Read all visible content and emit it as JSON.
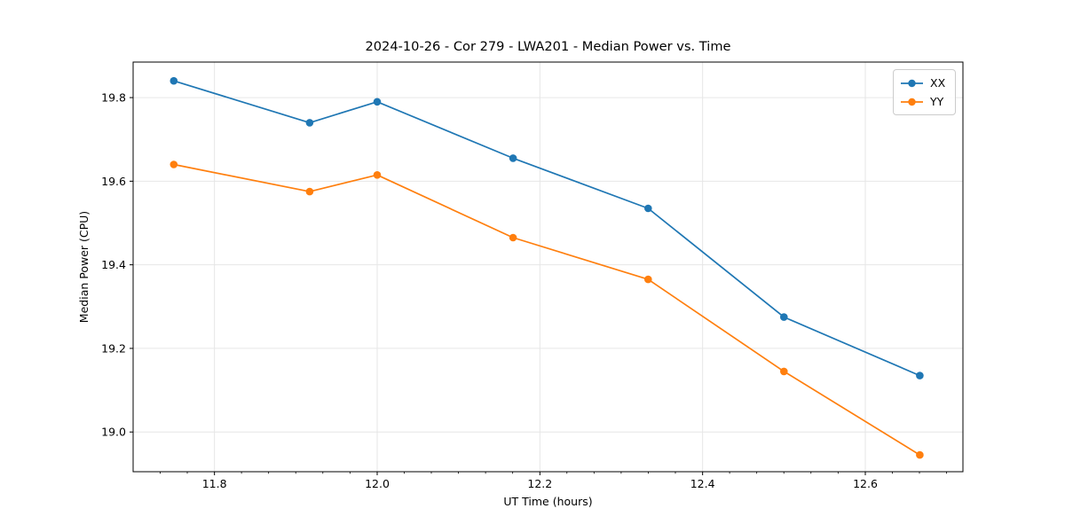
{
  "chart_data": {
    "type": "line",
    "title": "2024-10-26 - Cor 279 - LWA201 - Median Power vs. Time",
    "xlabel": "UT Time (hours)",
    "ylabel": "Median Power (CPU)",
    "xlim": [
      11.7,
      12.72
    ],
    "ylim": [
      18.905,
      19.885
    ],
    "xticks": {
      "values": [
        11.8,
        12.0,
        12.2,
        12.4,
        12.6
      ],
      "labels": [
        "11.8",
        "12.0",
        "12.2",
        "12.4",
        "12.6"
      ]
    },
    "yticks": {
      "values": [
        19.0,
        19.2,
        19.4,
        19.6,
        19.8
      ],
      "labels": [
        "19.0",
        "19.2",
        "19.4",
        "19.6",
        "19.8"
      ]
    },
    "x_minor_tick_step": 0.033333,
    "grid": true,
    "grid_color": "#e6e6e6",
    "spine_color": "#000000",
    "legend_position": "upper right",
    "x": [
      11.75,
      11.917,
      12.0,
      12.167,
      12.333,
      12.5,
      12.667
    ],
    "series": [
      {
        "name": "XX",
        "color": "#1f77b4",
        "values": [
          19.84,
          19.74,
          19.79,
          19.655,
          19.535,
          19.275,
          19.135
        ]
      },
      {
        "name": "YY",
        "color": "#ff7f0e",
        "values": [
          19.64,
          19.575,
          19.615,
          19.465,
          19.365,
          19.145,
          18.945
        ]
      }
    ]
  }
}
